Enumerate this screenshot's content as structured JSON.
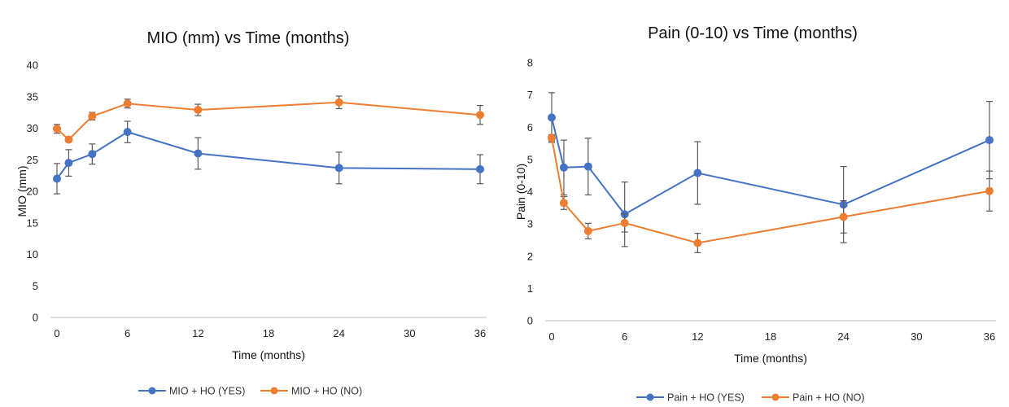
{
  "chart_data": [
    {
      "type": "line",
      "title": "MIO (mm) vs Time (months)",
      "xlabel": "Time (months)",
      "ylabel": "MIO (mm)",
      "xlim": [
        0,
        36
      ],
      "ylim": [
        0,
        40
      ],
      "xticks": [
        0,
        6,
        12,
        18,
        24,
        30,
        36
      ],
      "yticks": [
        0,
        5,
        10,
        15,
        20,
        25,
        30,
        35,
        40
      ],
      "grid": false,
      "legend": "bottom",
      "series": [
        {
          "name": "MIO + HO (YES)",
          "color": "#4472C4",
          "x": [
            0,
            1,
            3,
            6,
            12,
            24,
            36
          ],
          "y": [
            22.0,
            24.5,
            25.9,
            29.4,
            26.0,
            23.7,
            23.5
          ],
          "err": [
            2.4,
            2.1,
            1.6,
            1.7,
            2.5,
            2.5,
            2.3
          ]
        },
        {
          "name": "MIO + HO (NO)",
          "color": "#ED7D31",
          "x": [
            0,
            1,
            3,
            6,
            12,
            24,
            36
          ],
          "y": [
            29.9,
            28.2,
            31.9,
            33.9,
            32.9,
            34.1,
            32.1
          ],
          "err": [
            0.7,
            0.3,
            0.6,
            0.7,
            0.9,
            1.0,
            1.5
          ]
        }
      ]
    },
    {
      "type": "line",
      "title": "Pain (0-10) vs Time (months)",
      "xlabel": "Time (months)",
      "ylabel": "Pain (0-10)",
      "xlim": [
        0,
        36
      ],
      "ylim": [
        0,
        8
      ],
      "xticks": [
        0,
        6,
        12,
        18,
        24,
        30,
        36
      ],
      "yticks": [
        0,
        1,
        2,
        3,
        4,
        5,
        6,
        7,
        8
      ],
      "grid": false,
      "legend": "bottom",
      "series": [
        {
          "name": "Pain + HO (YES)",
          "color": "#4472C4",
          "x": [
            0,
            1,
            3,
            6,
            12,
            24,
            36
          ],
          "y": [
            6.3,
            4.75,
            4.78,
            3.3,
            4.58,
            3.6,
            5.6
          ],
          "err": [
            0.77,
            0.85,
            0.88,
            1.0,
            0.97,
            1.18,
            1.2
          ]
        },
        {
          "name": "Pain + HO (NO)",
          "color": "#ED7D31",
          "x": [
            0,
            1,
            3,
            6,
            12,
            24,
            36
          ],
          "y": [
            5.67,
            3.65,
            2.78,
            3.03,
            2.41,
            3.22,
            4.02
          ],
          "err": [
            0.1,
            0.2,
            0.24,
            0.28,
            0.3,
            0.5,
            0.62
          ]
        }
      ]
    }
  ]
}
